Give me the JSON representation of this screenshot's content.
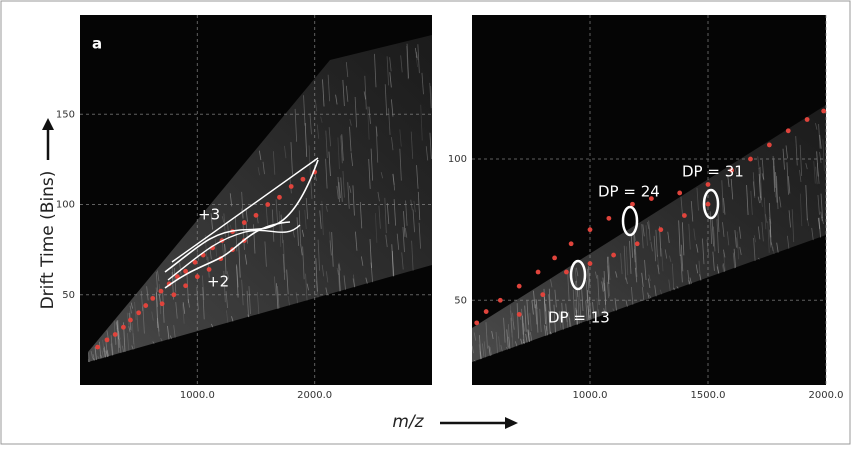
{
  "chart_data": [
    {
      "type": "scatter",
      "xlabel": "m/z",
      "ylabel": "Drift Time (Bins)",
      "annotations": [
        "a",
        "+3",
        "+2"
      ],
      "xlim": [
        0,
        3000
      ],
      "ylim": [
        0,
        205
      ],
      "xticks": [
        {
          "value": 1000,
          "label": "1000.0"
        },
        {
          "value": 2000,
          "label": "2000.0"
        }
      ],
      "yticks": [
        50,
        100,
        150
      ],
      "grid": true,
      "color": "#e0443c",
      "x": [
        150,
        230,
        300,
        370,
        430,
        500,
        560,
        620,
        690,
        760,
        830,
        900,
        980,
        1050,
        1130,
        1210,
        1300,
        1400,
        1500,
        1600,
        1700,
        1800,
        1900,
        2000,
        700,
        800,
        900,
        1000,
        1100,
        1200,
        1300,
        1400
      ],
      "values": [
        21,
        25,
        28,
        32,
        36,
        40,
        44,
        48,
        52,
        56,
        60,
        63,
        68,
        72,
        76,
        80,
        85,
        90,
        94,
        100,
        104,
        110,
        114,
        118,
        45,
        50,
        55,
        60,
        64,
        70,
        75,
        80
      ]
    },
    {
      "type": "scatter",
      "annotations": [
        "DP = 24",
        "DP = 31",
        "DP = 13"
      ],
      "xlim": [
        500,
        2000
      ],
      "ylim": [
        20,
        151
      ],
      "xticks": [
        {
          "value": 1000,
          "label": "1000.0"
        },
        {
          "value": 1500,
          "label": "1500.0"
        },
        {
          "value": 2000,
          "label": "2000.0"
        }
      ],
      "yticks": [
        50,
        100
      ],
      "grid": true,
      "color": "#e0443c",
      "x": [
        520,
        560,
        620,
        700,
        780,
        850,
        920,
        1000,
        1080,
        1180,
        1260,
        1380,
        1500,
        1600,
        1680,
        1760,
        1840,
        1920,
        1990,
        700,
        800,
        900,
        1000,
        1100,
        1200,
        1300,
        1400,
        1500
      ],
      "values": [
        42,
        46,
        50,
        55,
        60,
        65,
        70,
        75,
        79,
        84,
        86,
        88,
        91,
        96,
        100,
        105,
        110,
        114,
        117,
        45,
        52,
        60,
        63,
        66,
        70,
        75,
        80,
        84
      ]
    }
  ]
}
